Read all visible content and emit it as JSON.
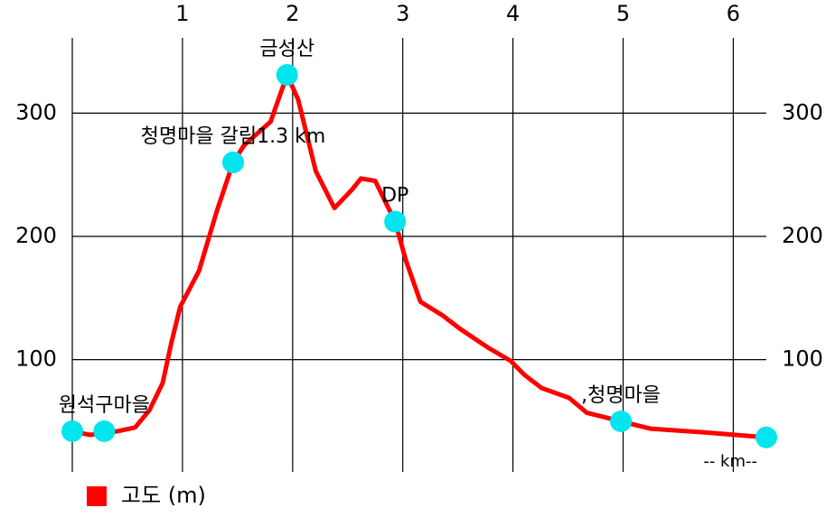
{
  "chart_data": {
    "type": "line",
    "x_label": "-- km--",
    "series": [
      {
        "name": "고도 (m)",
        "color": "#ff0000",
        "x": [
          0,
          0.16,
          0.41,
          0.57,
          0.7,
          0.82,
          0.9,
          0.98,
          1.15,
          1.31,
          1.46,
          1.56,
          1.8,
          1.95,
          2.05,
          2.21,
          2.38,
          2.54,
          2.62,
          2.75,
          2.93,
          3.03,
          3.16,
          3.36,
          3.52,
          3.77,
          3.98,
          4.1,
          4.26,
          4.51,
          4.67,
          4.98,
          5.25,
          5.74,
          6.3
        ],
        "values": [
          42,
          39,
          42,
          45,
          59,
          81,
          114,
          143,
          172,
          220,
          260,
          274,
          293,
          331,
          311,
          253,
          223,
          238,
          247,
          245,
          212,
          180,
          147,
          136,
          125,
          110,
          99,
          88,
          77,
          69,
          57,
          50,
          44,
          41,
          37
        ]
      }
    ],
    "markers": {
      "color": "#00e5ee",
      "x": [
        0,
        0.29,
        1.46,
        1.95,
        2.93,
        4.98,
        6.3
      ],
      "values": [
        42,
        42,
        260,
        331,
        212,
        50,
        37
      ],
      "labels": [
        null,
        "원석구마을",
        "청명마을 갈림1.3 km",
        "금성산",
        "DP",
        ",청명마을",
        null
      ]
    },
    "xlim": [
      0,
      6.3
    ],
    "xticks": [
      1,
      2,
      3,
      4,
      5,
      6
    ],
    "ylim": [
      9,
      361
    ],
    "yticks": [
      100,
      200,
      300
    ],
    "grid": true,
    "legend": "bottom-left"
  }
}
